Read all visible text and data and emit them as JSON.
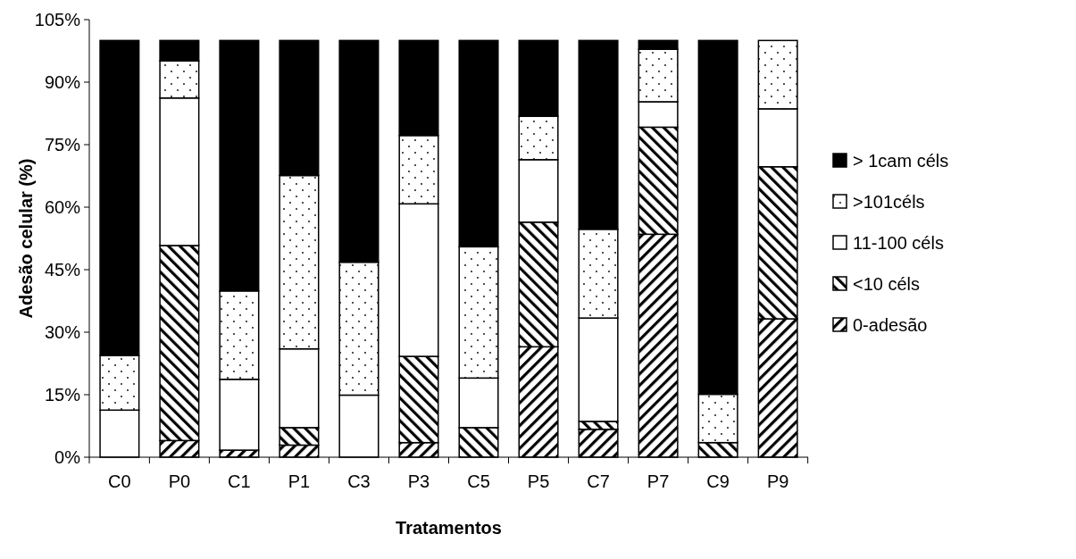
{
  "chart_data": {
    "type": "bar",
    "stacked": true,
    "xlabel": "Tratamentos",
    "ylabel": "Adesão celular (%)",
    "categories": [
      "C0",
      "P0",
      "C1",
      "P1",
      "C3",
      "P3",
      "C5",
      "P5",
      "C7",
      "P7",
      "C9",
      "P9"
    ],
    "series": [
      {
        "name": "0-adesão",
        "color": "#000000",
        "values": [
          0,
          4.0,
          1.7,
          2.9,
          0,
          3.5,
          0,
          26.5,
          6.7,
          53.5,
          0,
          33.2
        ]
      },
      {
        "name": "<10 céls",
        "color": "#000000",
        "values": [
          0,
          46.8,
          0,
          4.2,
          0,
          20.7,
          7.1,
          29.9,
          1.9,
          25.7,
          3.5,
          36.5
        ]
      },
      {
        "name": "11-100 céls",
        "color": "#ffffff",
        "values": [
          11.3,
          35.4,
          17.0,
          18.9,
          14.9,
          36.6,
          11.9,
          15.0,
          24.8,
          6.1,
          0,
          13.9
        ]
      },
      {
        "name": ">101céls",
        "color": "#000000",
        "values": [
          13.1,
          8.9,
          21.2,
          41.6,
          31.9,
          16.4,
          31.5,
          10.4,
          21.3,
          12.6,
          11.6,
          16.4
        ]
      },
      {
        "name": "> 1cam céls",
        "color": "#000000",
        "values": [
          75.6,
          4.9,
          60.1,
          32.4,
          53.2,
          22.8,
          49.5,
          18.2,
          45.3,
          2.1,
          84.9,
          0
        ]
      }
    ],
    "ylim": [
      0,
      105
    ],
    "yticks": [
      {
        "value": 0,
        "label": "0%"
      },
      {
        "value": 15,
        "label": "15%"
      },
      {
        "value": 30,
        "label": "30%"
      },
      {
        "value": 45,
        "label": "45%"
      },
      {
        "value": 60,
        "label": "60%"
      },
      {
        "value": 75,
        "label": "75%"
      },
      {
        "value": 90,
        "label": "90%"
      },
      {
        "value": 105,
        "label": "105%"
      }
    ],
    "legend": "right",
    "grid": false
  }
}
